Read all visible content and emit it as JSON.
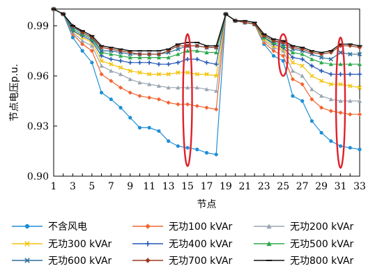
{
  "chart_data": {
    "type": "line",
    "xlabel": "节点",
    "ylabel": "节点电压p.u.",
    "xlim": [
      1,
      33
    ],
    "ylim": [
      0.9,
      1.0
    ],
    "x_ticks": [
      1,
      3,
      5,
      7,
      9,
      11,
      13,
      15,
      17,
      19,
      21,
      23,
      25,
      27,
      29,
      31,
      33
    ],
    "y_ticks": [
      0.9,
      0.93,
      0.96,
      0.99
    ],
    "y_tick_labels": [
      "0.90",
      "0.93",
      "0.96",
      "0.99"
    ],
    "x": [
      1,
      2,
      3,
      4,
      5,
      6,
      7,
      8,
      9,
      10,
      11,
      12,
      13,
      14,
      15,
      16,
      17,
      18,
      19,
      20,
      21,
      22,
      23,
      24,
      25,
      26,
      27,
      28,
      29,
      30,
      31,
      32,
      33
    ],
    "legend_placement": "bottom",
    "highlight_nodes": [
      15,
      25,
      31
    ],
    "highlight_color": "#e0202a",
    "series": [
      {
        "name": "不含风电",
        "color": "#1f8fd6",
        "marker": "circle",
        "values": [
          1.0,
          0.997,
          0.983,
          0.975,
          0.968,
          0.95,
          0.946,
          0.941,
          0.935,
          0.929,
          0.929,
          0.927,
          0.921,
          0.918,
          0.917,
          0.916,
          0.914,
          0.913,
          0.997,
          0.993,
          0.992,
          0.991,
          0.979,
          0.972,
          0.969,
          0.948,
          0.945,
          0.933,
          0.926,
          0.921,
          0.918,
          0.917,
          0.916
        ]
      },
      {
        "name": "无功100 kVAr",
        "color": "#f26430",
        "marker": "diamond",
        "values": [
          1.0,
          0.997,
          0.985,
          0.979,
          0.975,
          0.961,
          0.957,
          0.953,
          0.95,
          0.948,
          0.947,
          0.946,
          0.944,
          0.943,
          0.943,
          0.942,
          0.941,
          0.94,
          0.997,
          0.993,
          0.992,
          0.991,
          0.98,
          0.975,
          0.972,
          0.958,
          0.955,
          0.946,
          0.941,
          0.939,
          0.938,
          0.937,
          0.937
        ]
      },
      {
        "name": "无功200 kVAr",
        "color": "#9aa5b1",
        "marker": "triangle",
        "values": [
          1.0,
          0.997,
          0.986,
          0.981,
          0.978,
          0.966,
          0.963,
          0.961,
          0.958,
          0.956,
          0.955,
          0.954,
          0.953,
          0.953,
          0.953,
          0.953,
          0.952,
          0.951,
          0.997,
          0.993,
          0.992,
          0.991,
          0.981,
          0.977,
          0.975,
          0.963,
          0.96,
          0.952,
          0.948,
          0.946,
          0.945,
          0.945,
          0.945
        ]
      },
      {
        "name": "无功300 kVAr",
        "color": "#f2c40f",
        "marker": "x",
        "values": [
          1.0,
          0.997,
          0.987,
          0.983,
          0.98,
          0.969,
          0.967,
          0.965,
          0.963,
          0.962,
          0.961,
          0.961,
          0.961,
          0.962,
          0.962,
          0.961,
          0.961,
          0.96,
          0.997,
          0.993,
          0.992,
          0.991,
          0.982,
          0.978,
          0.976,
          0.968,
          0.966,
          0.96,
          0.957,
          0.955,
          0.955,
          0.954,
          0.953
        ]
      },
      {
        "name": "无功400 kVAr",
        "color": "#2457b5",
        "marker": "plus",
        "values": [
          1.0,
          0.997,
          0.987,
          0.984,
          0.981,
          0.972,
          0.97,
          0.969,
          0.968,
          0.968,
          0.968,
          0.967,
          0.967,
          0.968,
          0.97,
          0.97,
          0.968,
          0.967,
          0.997,
          0.993,
          0.992,
          0.991,
          0.983,
          0.979,
          0.977,
          0.971,
          0.97,
          0.966,
          0.963,
          0.961,
          0.961,
          0.961,
          0.961
        ]
      },
      {
        "name": "无功500 kVAr",
        "color": "#2ba84a",
        "marker": "triangle",
        "values": [
          1.0,
          0.997,
          0.988,
          0.985,
          0.982,
          0.974,
          0.973,
          0.972,
          0.971,
          0.971,
          0.971,
          0.971,
          0.971,
          0.973,
          0.975,
          0.975,
          0.974,
          0.974,
          0.997,
          0.993,
          0.992,
          0.991,
          0.983,
          0.98,
          0.978,
          0.974,
          0.973,
          0.97,
          0.968,
          0.967,
          0.967,
          0.967,
          0.967
        ]
      },
      {
        "name": "无功600 kVAr",
        "color": "#2c6e9b",
        "marker": "x",
        "values": [
          1.0,
          0.997,
          0.989,
          0.986,
          0.983,
          0.975,
          0.975,
          0.974,
          0.973,
          0.973,
          0.973,
          0.973,
          0.974,
          0.976,
          0.978,
          0.978,
          0.977,
          0.977,
          0.997,
          0.993,
          0.992,
          0.991,
          0.984,
          0.981,
          0.979,
          0.976,
          0.975,
          0.973,
          0.971,
          0.97,
          0.974,
          0.973,
          0.973
        ]
      },
      {
        "name": "无功700 kVAr",
        "color": "#9c3a1f",
        "marker": "diamond",
        "values": [
          1.0,
          0.997,
          0.99,
          0.986,
          0.983,
          0.977,
          0.976,
          0.975,
          0.974,
          0.973,
          0.973,
          0.973,
          0.975,
          0.978,
          0.978,
          0.978,
          0.977,
          0.977,
          0.997,
          0.993,
          0.992,
          0.991,
          0.984,
          0.981,
          0.98,
          0.977,
          0.976,
          0.974,
          0.973,
          0.974,
          0.978,
          0.978,
          0.977
        ]
      },
      {
        "name": "无功800 kVAr",
        "color": "#111111",
        "marker": "dash",
        "values": [
          1.0,
          0.997,
          0.99,
          0.987,
          0.984,
          0.978,
          0.977,
          0.976,
          0.975,
          0.975,
          0.975,
          0.975,
          0.976,
          0.979,
          0.98,
          0.98,
          0.978,
          0.978,
          0.997,
          0.993,
          0.993,
          0.992,
          0.985,
          0.982,
          0.981,
          0.978,
          0.977,
          0.975,
          0.974,
          0.975,
          0.979,
          0.979,
          0.978
        ]
      }
    ]
  }
}
